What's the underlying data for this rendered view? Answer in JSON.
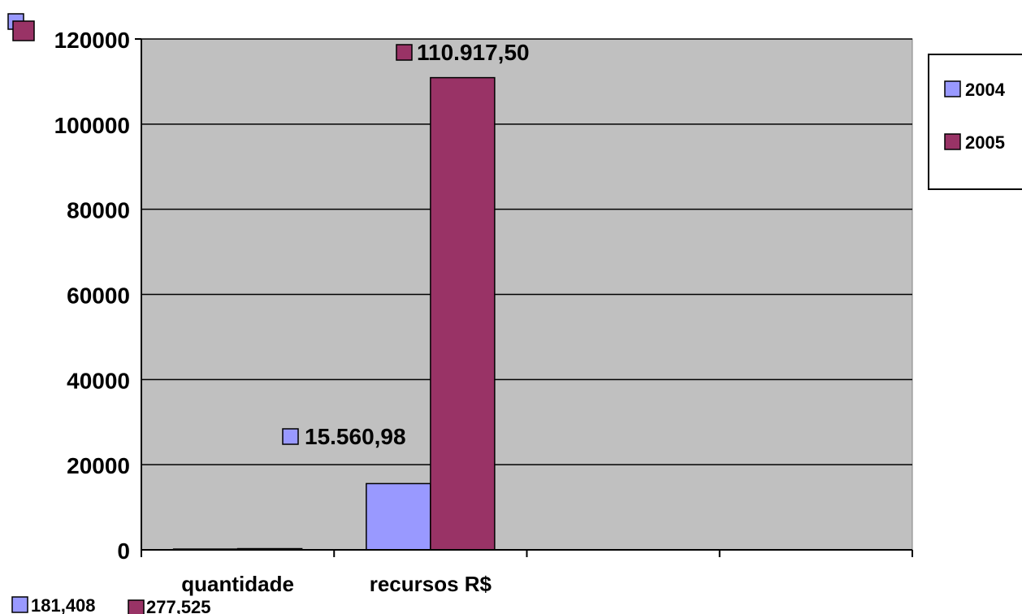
{
  "chart_data": {
    "type": "bar",
    "categories": [
      "quantidade",
      "recursos R$",
      "",
      ""
    ],
    "series": [
      {
        "name": "2004",
        "color": "#9999ff",
        "values": [
          181.408,
          15560.98,
          null,
          null
        ],
        "labels": [
          "181,408",
          "15.560,98",
          "",
          ""
        ]
      },
      {
        "name": "2005",
        "color": "#993366",
        "values": [
          277.525,
          110917.5,
          null,
          null
        ],
        "labels": [
          "277,525",
          "110.917,50",
          "",
          ""
        ]
      }
    ],
    "ylim": [
      0,
      120000
    ],
    "yticks": [
      0,
      20000,
      40000,
      60000,
      80000,
      100000,
      120000
    ],
    "plot_background": "#c0c0c0",
    "grid": true,
    "legend": "right",
    "xlabel": "",
    "ylabel": "",
    "title": ""
  }
}
